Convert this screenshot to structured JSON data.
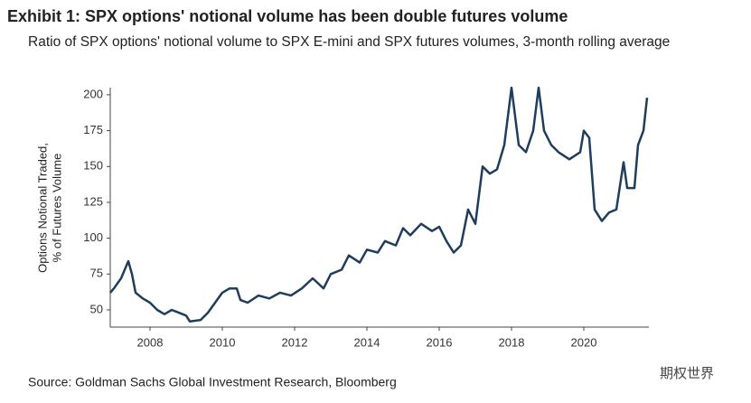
{
  "chart_data": {
    "type": "line",
    "title": "Exhibit 1: SPX options' notional volume has been double futures volume",
    "subtitle": "Ratio of SPX options' notional volume to SPX E-mini and SPX futures volumes, 3-month rolling average",
    "y_label": [
      "Options Notional Traded,",
      "% of Futures Volume"
    ],
    "source": "Source: Goldman Sachs Global Investment Research, Bloomberg",
    "watermark": "期权世界",
    "xlim": [
      2006.9,
      2021.8
    ],
    "xticks": [
      2008,
      2010,
      2012,
      2014,
      2016,
      2018,
      2020
    ],
    "ylim": [
      38,
      205
    ],
    "yticks": [
      50,
      75,
      100,
      125,
      150,
      175,
      200
    ],
    "grid": false,
    "series": [
      {
        "name": "Ratio",
        "color": "#1f3d5c",
        "x": [
          2006.9,
          2007.0,
          2007.2,
          2007.4,
          2007.5,
          2007.6,
          2007.8,
          2008.0,
          2008.2,
          2008.4,
          2008.6,
          2008.8,
          2009.0,
          2009.1,
          2009.4,
          2009.6,
          2009.8,
          2010.0,
          2010.2,
          2010.4,
          2010.5,
          2010.7,
          2011.0,
          2011.3,
          2011.6,
          2011.9,
          2012.2,
          2012.5,
          2012.8,
          2013.0,
          2013.3,
          2013.5,
          2013.8,
          2014.0,
          2014.3,
          2014.5,
          2014.8,
          2015.0,
          2015.2,
          2015.5,
          2015.8,
          2016.0,
          2016.2,
          2016.4,
          2016.6,
          2016.8,
          2017.0,
          2017.2,
          2017.4,
          2017.6,
          2017.8,
          2018.0,
          2018.2,
          2018.4,
          2018.6,
          2018.75,
          2018.9,
          2019.1,
          2019.3,
          2019.6,
          2019.9,
          2020.0,
          2020.15,
          2020.3,
          2020.5,
          2020.7,
          2020.9,
          2021.1,
          2021.2,
          2021.4,
          2021.5,
          2021.65,
          2021.75
        ],
        "values": [
          62,
          65,
          72,
          84,
          75,
          62,
          58,
          55,
          50,
          47,
          50,
          48,
          46,
          42,
          43,
          48,
          55,
          62,
          65,
          65,
          57,
          55,
          60,
          58,
          62,
          60,
          65,
          72,
          65,
          75,
          78,
          88,
          83,
          92,
          90,
          98,
          95,
          107,
          102,
          110,
          105,
          108,
          98,
          90,
          95,
          120,
          110,
          150,
          145,
          148,
          165,
          205,
          165,
          160,
          175,
          205,
          175,
          165,
          160,
          155,
          160,
          175,
          170,
          120,
          112,
          118,
          120,
          153,
          135,
          135,
          165,
          175,
          198
        ]
      }
    ]
  }
}
